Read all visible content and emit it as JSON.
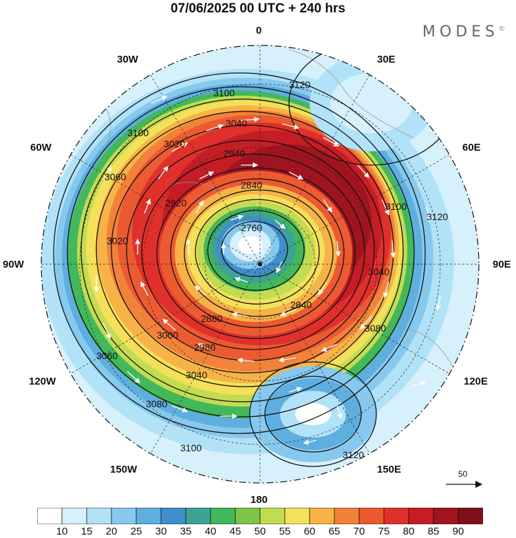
{
  "title": "07/06/2025  00 UTC  + 240 hrs",
  "logo": "MODES",
  "logo_mark": "©",
  "longitude_labels": [
    {
      "text": "0"
    },
    {
      "text": "30E"
    },
    {
      "text": "60E"
    },
    {
      "text": "90E"
    },
    {
      "text": "120E"
    },
    {
      "text": "150E"
    },
    {
      "text": "180"
    },
    {
      "text": "150W"
    },
    {
      "text": "120W"
    },
    {
      "text": "90W"
    },
    {
      "text": "60W"
    },
    {
      "text": "30W"
    }
  ],
  "contour_labels": [
    "2760",
    "2840",
    "2880",
    "2920",
    "2940",
    "2980",
    "3000",
    "3020",
    "3040",
    "3060",
    "3080",
    "3100",
    "3120"
  ],
  "wind_scale_label": "50",
  "colorbar": {
    "ticks": [
      "10",
      "15",
      "20",
      "25",
      "30",
      "35",
      "40",
      "45",
      "50",
      "55",
      "60",
      "65",
      "70",
      "75",
      "80",
      "85",
      "90"
    ],
    "colors": [
      "#ffffff",
      "#d6f0fc",
      "#b1e2f8",
      "#87c9ee",
      "#5faee0",
      "#3f8fca",
      "#3fa393",
      "#43b85a",
      "#7dc44a",
      "#c2dc52",
      "#f5e05a",
      "#f7b347",
      "#f2823a",
      "#ec5a32",
      "#e0302b",
      "#c41d25",
      "#a0141f",
      "#7e0f1a"
    ]
  }
}
